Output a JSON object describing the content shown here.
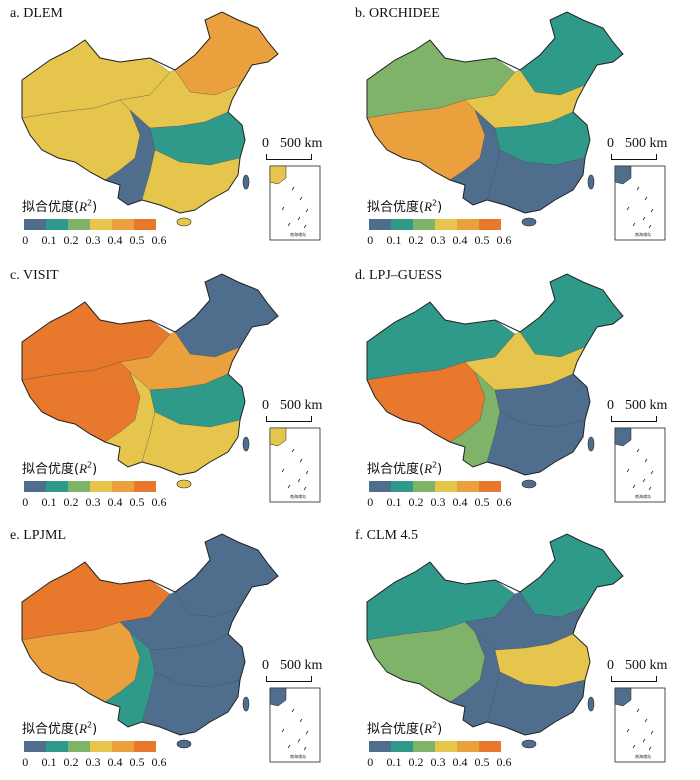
{
  "legend": {
    "title_text": "拟合优度(",
    "title_var": "R",
    "title_sup": "2",
    "title_close": ")",
    "ticks": [
      "0",
      "0.1",
      "0.2",
      "0.3",
      "0.4",
      "0.5",
      "0.6"
    ],
    "colors": [
      "#4f6e8e",
      "#2f9a8a",
      "#7fb36a",
      "#e6c54c",
      "#eaa03c",
      "#e7782c"
    ]
  },
  "scale_bar": {
    "label_zero": "0",
    "label_length": "500 km"
  },
  "inset_label": "南海诸岛",
  "panels": [
    {
      "id": "a",
      "label": "a. DLEM",
      "regions": {
        "nw": 3,
        "tb": 3,
        "ne": 4,
        "nc": 3,
        "sw": 0,
        "ec": 1,
        "s": 3
      }
    },
    {
      "id": "b",
      "label": "b. ORCHIDEE",
      "regions": {
        "nw": 2,
        "tb": 4,
        "ne": 1,
        "nc": 3,
        "sw": 0,
        "ec": 1,
        "s": 0
      }
    },
    {
      "id": "c",
      "label": "c. VISIT",
      "regions": {
        "nw": 5,
        "tb": 5,
        "ne": 0,
        "nc": 4,
        "sw": 3,
        "ec": 1,
        "s": 3
      }
    },
    {
      "id": "d",
      "label": "d. LPJ–GUESS",
      "regions": {
        "nw": 1,
        "tb": 5,
        "ne": 1,
        "nc": 3,
        "sw": 2,
        "ec": 0,
        "s": 0
      }
    },
    {
      "id": "e",
      "label": "e. LPJML",
      "regions": {
        "nw": 5,
        "tb": 4,
        "ne": 0,
        "nc": 0,
        "sw": 1,
        "ec": 0,
        "s": 0
      }
    },
    {
      "id": "f",
      "label": "f. CLM 4.5",
      "regions": {
        "nw": 1,
        "tb": 2,
        "ne": 1,
        "nc": 0,
        "sw": 0,
        "ec": 3,
        "s": 0
      }
    }
  ]
}
